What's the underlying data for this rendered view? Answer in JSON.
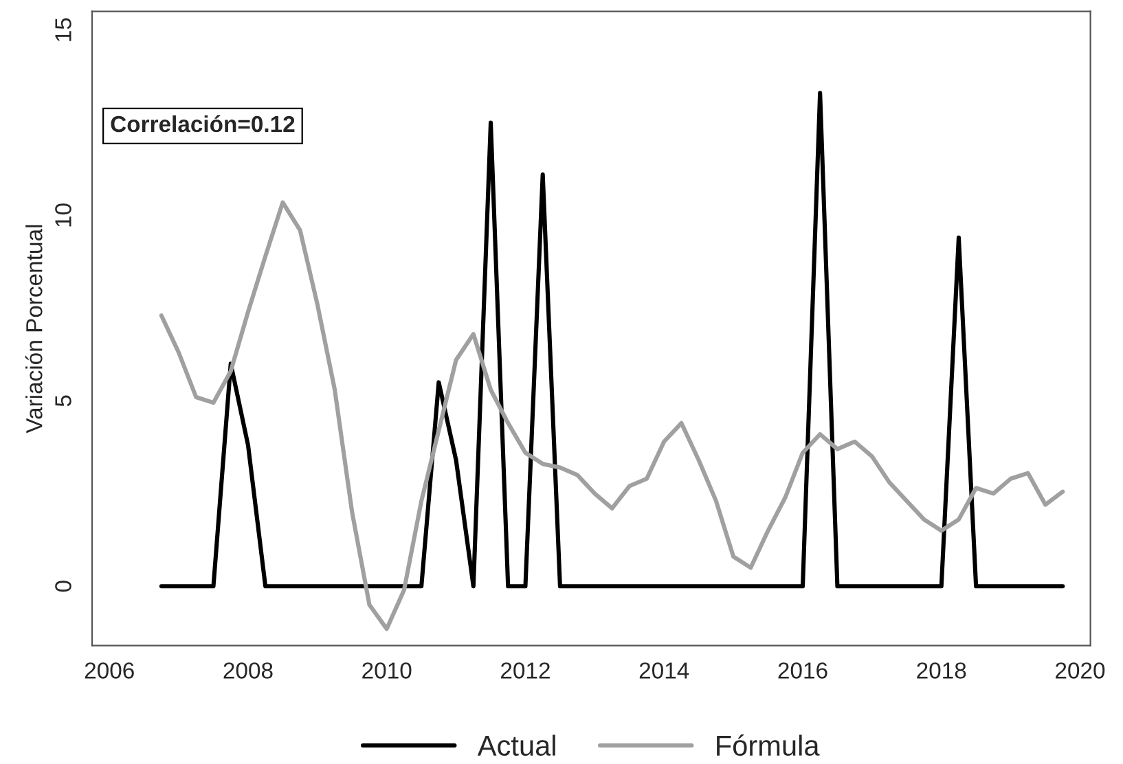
{
  "chart_data": {
    "type": "line",
    "ylabel": "Variación Porcentual",
    "x": [
      2006.75,
      2007,
      2007.25,
      2007.5,
      2007.75,
      2008,
      2008.25,
      2008.5,
      2008.75,
      2009,
      2009.25,
      2009.5,
      2009.75,
      2010,
      2010.25,
      2010.5,
      2010.75,
      2011,
      2011.25,
      2011.5,
      2011.75,
      2012,
      2012.25,
      2012.5,
      2012.75,
      2013,
      2013.25,
      2013.5,
      2013.75,
      2014,
      2014.25,
      2014.5,
      2014.75,
      2015,
      2015.25,
      2015.5,
      2015.75,
      2016,
      2016.25,
      2016.5,
      2016.75,
      2017,
      2017.25,
      2017.5,
      2017.75,
      2018,
      2018.25,
      2018.5,
      2018.75,
      2019,
      2019.25,
      2019.5,
      2019.75
    ],
    "series": [
      {
        "name": "Actual",
        "color": "#000000",
        "values": [
          0,
          0,
          0,
          0,
          6.0,
          3.8,
          0,
          0,
          0,
          0,
          0,
          0,
          0,
          0,
          0,
          0,
          5.5,
          3.4,
          0,
          12.5,
          0,
          0,
          11.1,
          0,
          0,
          0,
          0,
          0,
          0,
          0,
          0,
          0,
          0,
          0,
          0,
          0,
          0,
          0,
          13.3,
          0,
          0,
          0,
          0,
          0,
          0,
          0,
          9.4,
          0,
          0,
          0,
          0,
          0,
          0
        ]
      },
      {
        "name": "Fórmula",
        "color": "#a0a0a0",
        "values": [
          7.3,
          6.3,
          5.1,
          4.95,
          5.8,
          7.4,
          8.9,
          10.35,
          9.6,
          7.6,
          5.3,
          2.0,
          -0.5,
          -1.15,
          -0.1,
          2.3,
          4.2,
          6.1,
          6.8,
          5.3,
          4.4,
          3.6,
          3.3,
          3.2,
          3.0,
          2.5,
          2.1,
          2.7,
          2.9,
          3.9,
          4.4,
          3.4,
          2.3,
          0.8,
          0.5,
          1.5,
          2.4,
          3.6,
          4.1,
          3.7,
          3.9,
          3.5,
          2.8,
          2.3,
          1.8,
          1.5,
          1.8,
          2.65,
          2.5,
          2.9,
          3.05,
          2.2,
          2.55
        ]
      }
    ],
    "annotations": [
      "Correlación=0.12"
    ],
    "xlim": [
      2005.75,
      2020.15
    ],
    "xticks": [
      2006,
      2008,
      2010,
      2012,
      2014,
      2016,
      2018,
      2020
    ],
    "ylim": [
      -1.6,
      15.5
    ],
    "yticks": [
      0,
      5,
      10,
      15
    ],
    "grid": false,
    "legend": "bottom",
    "line_style": "solid",
    "marker": "none"
  }
}
